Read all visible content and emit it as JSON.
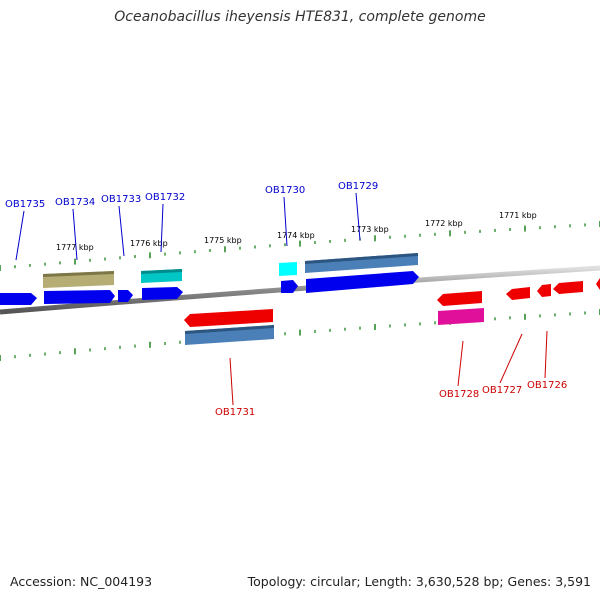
{
  "title": "Oceanobacillus iheyensis HTE831, complete genome",
  "footer": {
    "accession": "Accession: NC_004193",
    "topology": "Topology: circular; Length: 3,630,528 bp; Genes: 3,591"
  },
  "colors": {
    "forward_strand": "#0000ee",
    "reverse_strand": "#ee0000",
    "tick": "#2e8b2e",
    "backbone": "#888888"
  },
  "kbp_labels": [
    "1777 kbp",
    "1776 kbp",
    "1775 kbp",
    "1774 kbp",
    "1773 kbp",
    "1772 kbp",
    "1771 kbp"
  ],
  "forward_genes": [
    "OB1735",
    "OB1734",
    "OB1733",
    "OB1732",
    "OB1730",
    "OB1729"
  ],
  "reverse_genes": [
    "OB1731",
    "OB1728",
    "OB1727",
    "OB1726"
  ]
}
